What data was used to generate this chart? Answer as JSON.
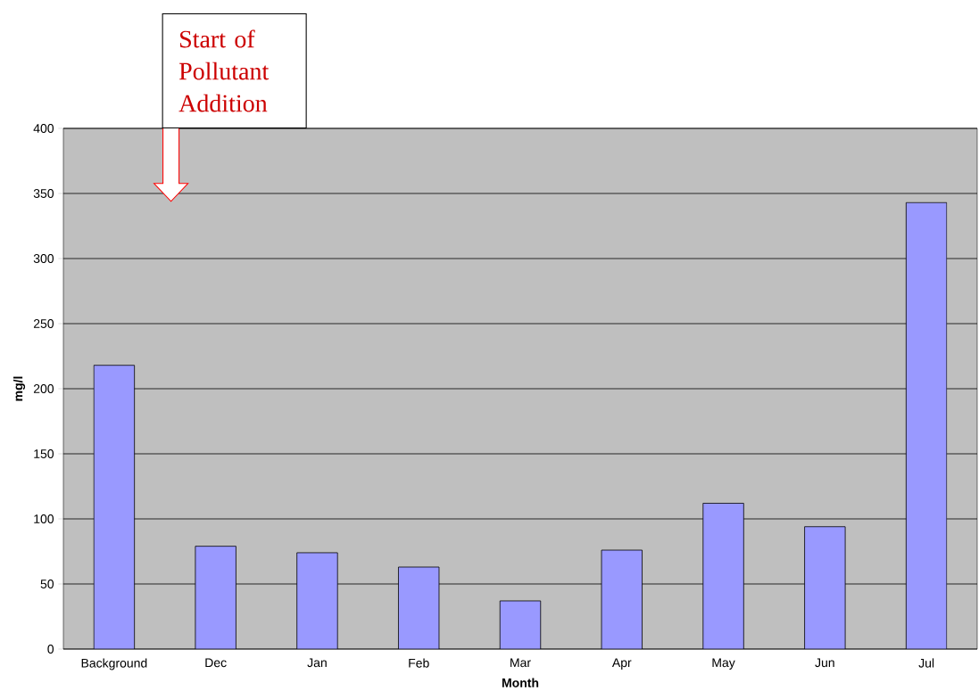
{
  "chart_data": {
    "type": "bar",
    "categories": [
      "Background",
      "Dec",
      "Jan",
      "Feb",
      "Mar",
      "Apr",
      "May",
      "Jun",
      "Jul"
    ],
    "values": [
      218,
      79,
      74,
      63,
      37,
      76,
      112,
      94,
      343
    ],
    "color": "#9999ff",
    "xlabel": "Month",
    "ylabel": "mg/l",
    "ylim": [
      0,
      400
    ],
    "yticks": [
      0,
      50,
      100,
      150,
      200,
      250,
      300,
      350,
      400
    ],
    "grid": "y",
    "annotations": [
      "Start of Pollutant Addition"
    ]
  }
}
